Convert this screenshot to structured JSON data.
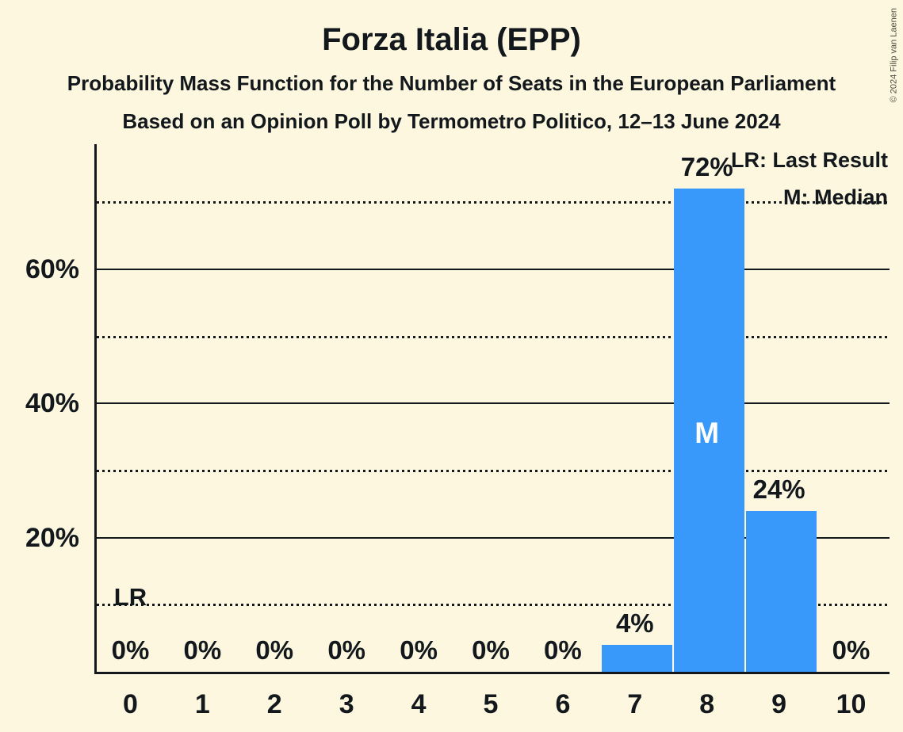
{
  "title": "Forza Italia (EPP)",
  "subtitle1": "Probability Mass Function for the Number of Seats in the European Parliament",
  "subtitle2": "Based on an Opinion Poll by Termometro Politico, 12–13 June 2024",
  "copyright": "© 2024 Filip van Laenen",
  "legend": {
    "lr": "LR: Last Result",
    "m": "M: Median"
  },
  "colors": {
    "background": "#FCF7DE",
    "bar": "#3899FB",
    "text": "#13181D",
    "median_text": "#FFFFFF"
  },
  "chart_data": {
    "type": "bar",
    "title": "Forza Italia (EPP)",
    "xlabel": "",
    "ylabel": "",
    "categories": [
      0,
      1,
      2,
      3,
      4,
      5,
      6,
      7,
      8,
      9,
      10
    ],
    "values": [
      0,
      0,
      0,
      0,
      0,
      0,
      0,
      4,
      72,
      24,
      0
    ],
    "bar_labels": [
      "0%",
      "0%",
      "0%",
      "0%",
      "0%",
      "0%",
      "0%",
      "4%",
      "72%",
      "24%",
      "0%"
    ],
    "ylim": [
      0,
      78.6
    ],
    "yticks_solid": [
      {
        "value": 20,
        "label": "20%"
      },
      {
        "value": 40,
        "label": "40%"
      },
      {
        "value": 60,
        "label": "60%"
      }
    ],
    "yticks_dotted": [
      10,
      30,
      50,
      70
    ],
    "grid": "horizontal",
    "legend_position": "top-right",
    "median_seat": 8,
    "median_marker": "M",
    "last_result_seat": 0,
    "last_result_marker": "LR"
  }
}
